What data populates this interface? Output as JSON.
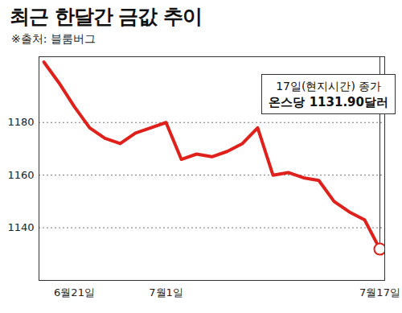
{
  "chart_data": {
    "type": "line",
    "title": "최근 한달간 금값 추이",
    "subtitle": "※출처: 블룸버그",
    "categories": [
      null,
      null,
      "6월21일",
      null,
      null,
      null,
      null,
      null,
      "7월1일",
      null,
      null,
      null,
      null,
      null,
      null,
      null,
      null,
      null,
      null,
      null,
      null,
      null,
      "7월17일"
    ],
    "values": [
      1203,
      1195,
      1186,
      1178,
      1174,
      1172,
      1176,
      1178,
      1180,
      1166,
      1168,
      1167,
      1169,
      1172,
      1178,
      1160,
      1161,
      1159,
      1158,
      1150,
      1146,
      1143,
      1131.9
    ],
    "color": "#e0201b",
    "ylim": [
      1120,
      1205
    ],
    "yticks": [
      1140,
      1160,
      1180
    ],
    "grid": true,
    "annotation": [
      "17일(현지시간) 종가",
      "온스당 1131.90달러"
    ]
  }
}
